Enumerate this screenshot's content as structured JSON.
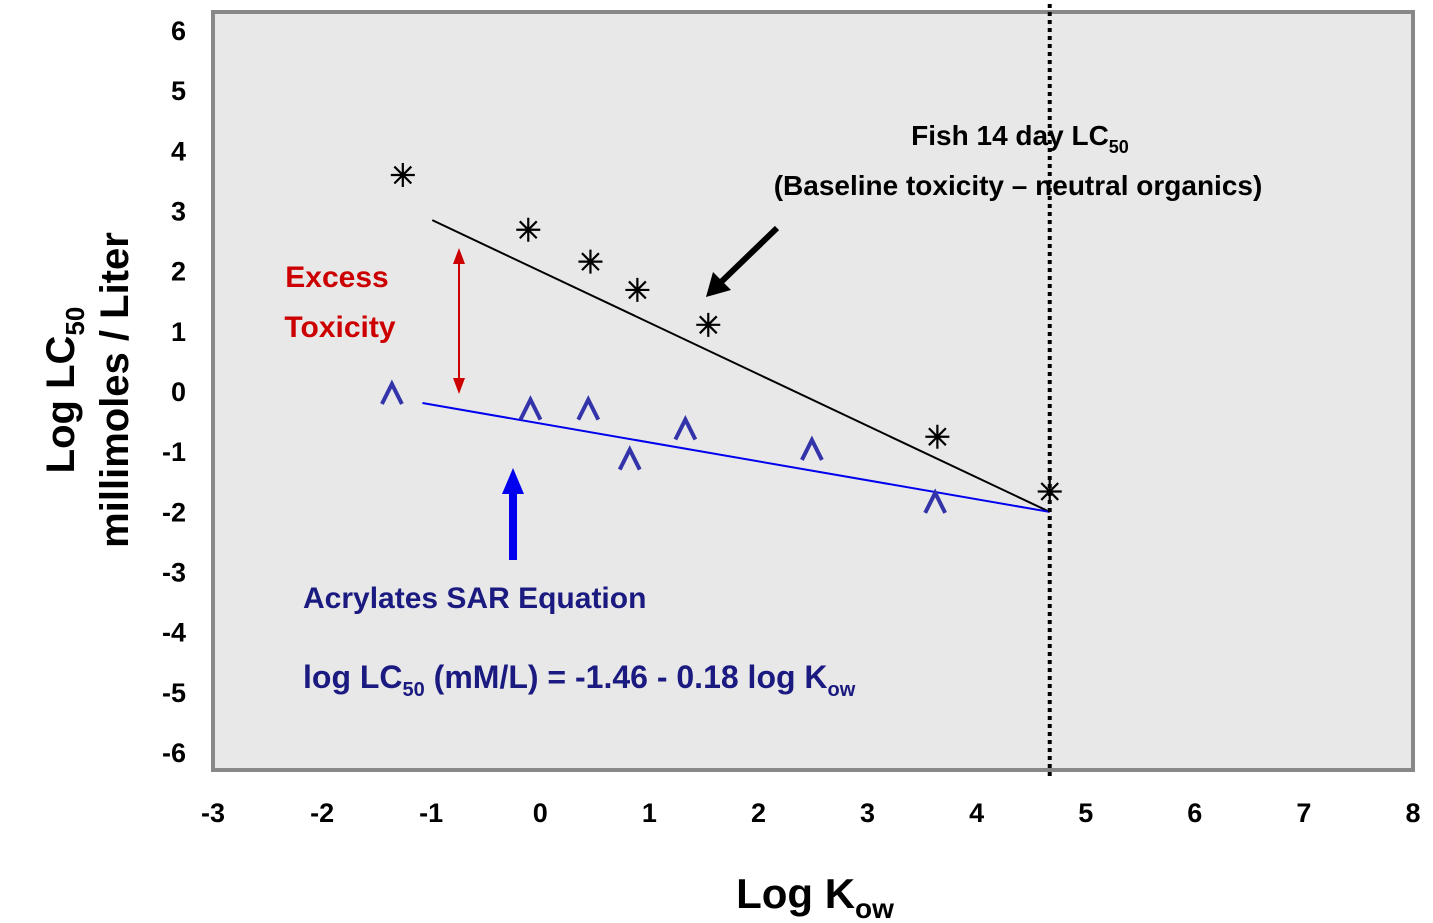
{
  "chart_data": {
    "type": "scatter",
    "xlim": [
      -3,
      8
    ],
    "ylim": [
      -6.3,
      6.3
    ],
    "xticks": [
      -3,
      -2,
      -1,
      0,
      1,
      2,
      3,
      4,
      5,
      6,
      7,
      8
    ],
    "yticks": [
      6,
      5,
      4,
      3,
      2,
      1,
      0,
      -1,
      -2,
      -3,
      -4,
      -5,
      -6
    ],
    "grid": false,
    "series": [
      {
        "marker": "asterisk",
        "color": "#000000",
        "x": [
          -1.26,
          -0.11,
          0.46,
          0.89,
          1.54,
          3.64,
          4.67
        ],
        "values": [
          3.59,
          2.68,
          2.15,
          1.68,
          1.1,
          -0.76,
          -1.67
        ]
      },
      {
        "marker": "caret",
        "color": "#3333aa",
        "x": [
          -1.36,
          -0.09,
          0.44,
          0.82,
          1.33,
          2.49,
          3.62
        ],
        "values": [
          -0.05,
          -0.31,
          -0.31,
          -1.14,
          -0.64,
          -0.98,
          -1.86
        ]
      }
    ],
    "lines": [
      {
        "color": "#000000",
        "x": [
          -0.99,
          4.67
        ],
        "values": [
          2.84,
          -2.01
        ]
      },
      {
        "color": "#0000ee",
        "x": [
          -1.08,
          4.67
        ],
        "values": [
          -0.2,
          -2.01
        ]
      }
    ],
    "vline": 4.67,
    "annotations": {
      "fish": [
        "Fish 14 day LC",
        "50"
      ],
      "fish2": "(Baseline toxicity – neutral organics)",
      "excess": [
        "Excess",
        "Toxicity"
      ],
      "sar": "Acrylates SAR Equation",
      "equation": [
        "log LC",
        "50",
        " (mM/L) = -1.46 - 0.18 log K",
        "ow"
      ]
    },
    "ylabel": [
      "Log LC",
      "50"
    ],
    "ylabel2": "millimoles / Liter",
    "xlabel": [
      "Log K",
      "ow"
    ]
  }
}
